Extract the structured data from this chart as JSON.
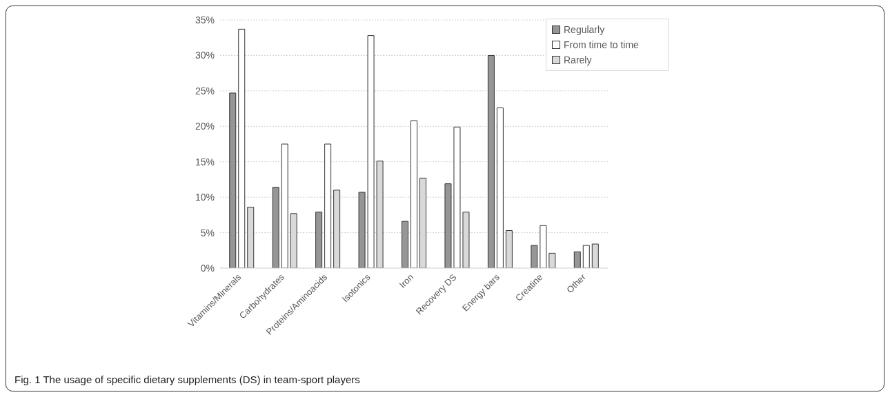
{
  "chart_data": {
    "type": "bar",
    "categories": [
      "Vitamins/Minerals",
      "Carbohydrates",
      "Proteins/Aminoacids",
      "Isotonics",
      "Iron",
      "Recovery DS",
      "Energy bars",
      "Creatine",
      "Other"
    ],
    "series": [
      {
        "name": "Regularly",
        "color": "#969696",
        "values": [
          24.7,
          11.4,
          7.9,
          10.7,
          6.6,
          11.9,
          30.0,
          3.2,
          2.3
        ]
      },
      {
        "name": "From time to time",
        "color": "#ffffff",
        "values": [
          33.7,
          17.5,
          17.5,
          32.8,
          20.8,
          19.9,
          22.6,
          6.0,
          3.2
        ]
      },
      {
        "name": "Rarely",
        "color": "#d9d9d9",
        "values": [
          8.6,
          7.7,
          11.0,
          15.1,
          12.7,
          7.9,
          5.3,
          2.1,
          3.4
        ]
      }
    ],
    "ylim": [
      0,
      35
    ],
    "yticks": [
      {
        "value": 0,
        "label": "0%"
      },
      {
        "value": 5,
        "label": "5%"
      },
      {
        "value": 10,
        "label": "10%"
      },
      {
        "value": 15,
        "label": "15%"
      },
      {
        "value": 20,
        "label": "20%"
      },
      {
        "value": 25,
        "label": "25%"
      },
      {
        "value": 30,
        "label": "30%"
      },
      {
        "value": 35,
        "label": "35%"
      }
    ],
    "grid": "y",
    "legend": "top right",
    "annotations": [
      "Fig. 1 The usage of specific dietary supplements (DS) in team-sport players"
    ]
  }
}
